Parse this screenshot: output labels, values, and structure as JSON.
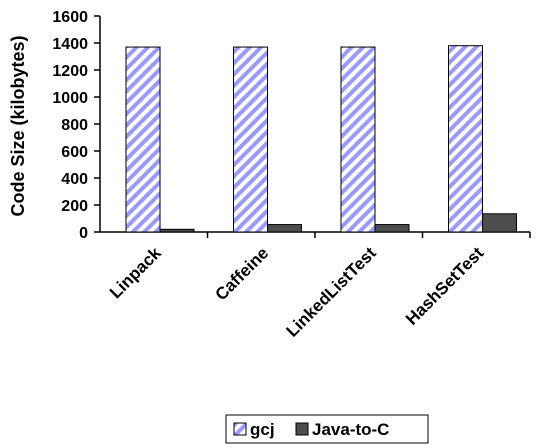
{
  "chart_data": {
    "type": "bar",
    "categories": [
      "Linpack",
      "Caffeine",
      "LinkedListTest",
      "HashSetTest"
    ],
    "series": [
      {
        "name": "gcj",
        "values": [
          1370,
          1370,
          1370,
          1380
        ],
        "color": "#9999ff",
        "pattern": "diagonal-stripes"
      },
      {
        "name": "Java-to-C",
        "values": [
          20,
          55,
          55,
          135
        ],
        "color": "#4d4d4d"
      }
    ],
    "title": "",
    "xlabel": "",
    "ylabel": "Code Size (kilobytes)",
    "ylim": [
      0,
      1600
    ],
    "yticks": [
      0,
      200,
      400,
      600,
      800,
      1000,
      1200,
      1400,
      1600
    ],
    "grid": false,
    "legend": "bottom"
  }
}
